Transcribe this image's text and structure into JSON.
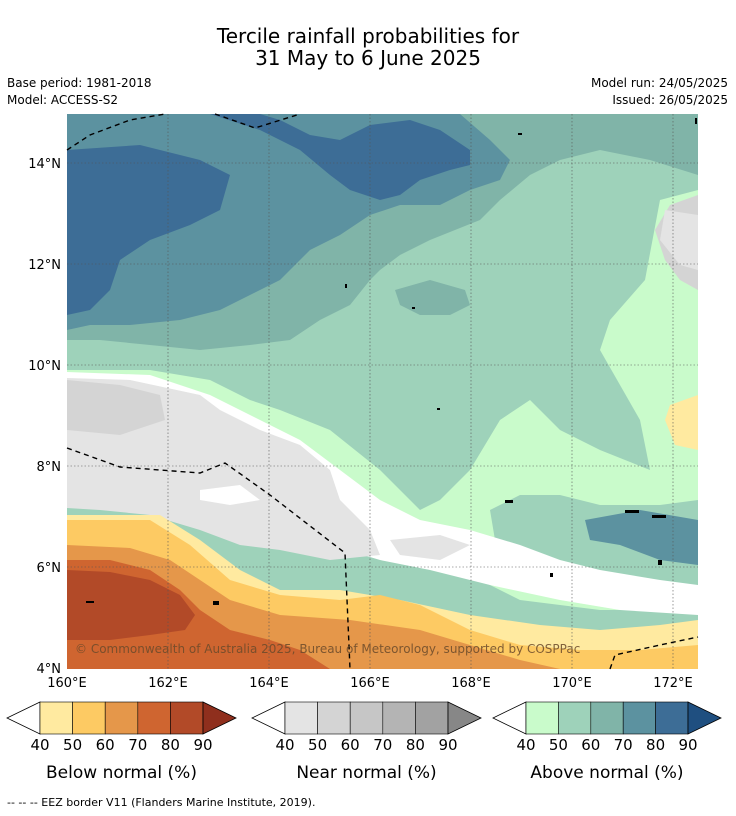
{
  "title_line1": "Tercile rainfall probabilities for",
  "title_line2": "31 May to 6 June 2025",
  "base_period": "Base period: 1981-2018",
  "model": "Model: ACCESS-S2",
  "model_run": "Model run: 24/05/2025",
  "issued": "Issued: 26/05/2025",
  "copyright": "© Commonwealth of Australia 2025, Bureau of Meteorology, supported by COSPPac",
  "lat_labels": [
    "14°N",
    "12°N",
    "10°N",
    "8°N",
    "6°N",
    "4°N"
  ],
  "lon_labels": [
    "160°E",
    "162°E",
    "164°E",
    "166°E",
    "168°E",
    "170°E",
    "172°E"
  ],
  "colorbars": [
    {
      "title": "Below normal (%)",
      "ticks": [
        "40",
        "50",
        "60",
        "70",
        "80",
        "90"
      ],
      "colors": [
        "#ffeaa0",
        "#fdca63",
        "#e5974a",
        "#cf6530",
        "#b24a28",
        "#8f2f1d"
      ]
    },
    {
      "title": "Near normal (%)",
      "ticks": [
        "40",
        "50",
        "60",
        "70",
        "80",
        "90"
      ],
      "colors": [
        "#e4e4e4",
        "#d4d4d4",
        "#c6c6c6",
        "#b4b4b4",
        "#a2a2a2",
        "#878787"
      ]
    },
    {
      "title": "Above normal (%)",
      "ticks": [
        "40",
        "50",
        "60",
        "70",
        "80",
        "90"
      ],
      "colors": [
        "#c9fbcb",
        "#9ed2ba",
        "#80b4a8",
        "#5c92a0",
        "#3d6d96",
        "#1f4f80"
      ]
    }
  ],
  "footnote": "--  --  -- EEZ border V11 (Flanders Marine Institute, 2019)."
}
